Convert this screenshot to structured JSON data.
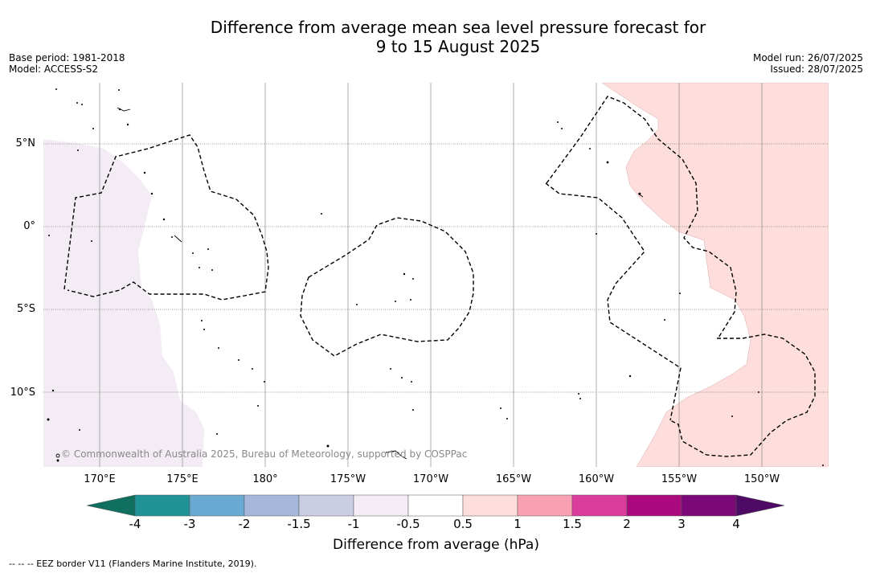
{
  "title_line1": "Difference from average mean sea level pressure forecast for",
  "title_line2": "9 to 15 August 2025",
  "base_period": "Base period: 1981-2018",
  "model": "Model: ACCESS-S2",
  "model_run": "Model run: 26/07/2025",
  "issued": "Issued: 28/07/2025",
  "map": {
    "lat_ticks": [
      "5°N",
      "0°",
      "5°S",
      "10°S"
    ],
    "lon_ticks": [
      "170°E",
      "175°E",
      "180°",
      "175°W",
      "170°W",
      "165°W",
      "160°W",
      "155°W",
      "150°W"
    ],
    "copyright": "© Commonwealth of Australia 2025, Bureau of Meteorology, supported by COSPPac",
    "regions": [
      {
        "category": "-1 to -0.5",
        "color": "#f3ecf5"
      },
      {
        "category": "0.5 to 1",
        "color": "#fddedd"
      }
    ]
  },
  "colorbar": {
    "ticks": [
      "-4",
      "-3",
      "-2",
      "-1.5",
      "-1",
      "-0.5",
      "0.5",
      "1",
      "1.5",
      "2",
      "3",
      "4"
    ],
    "colors": [
      "#0f7060",
      "#1f9496",
      "#69a9d2",
      "#a5b8dc",
      "#cbcde4",
      "#f3ecf5",
      "#ffffff",
      "#fddedd",
      "#f9a0b4",
      "#db3d9c",
      "#ab0a7f",
      "#7a0876",
      "#4e0a64"
    ],
    "label": "Difference from average (hPa)"
  },
  "footnote": "--  --  -- EEZ border V11 (Flanders Marine Institute, 2019)."
}
